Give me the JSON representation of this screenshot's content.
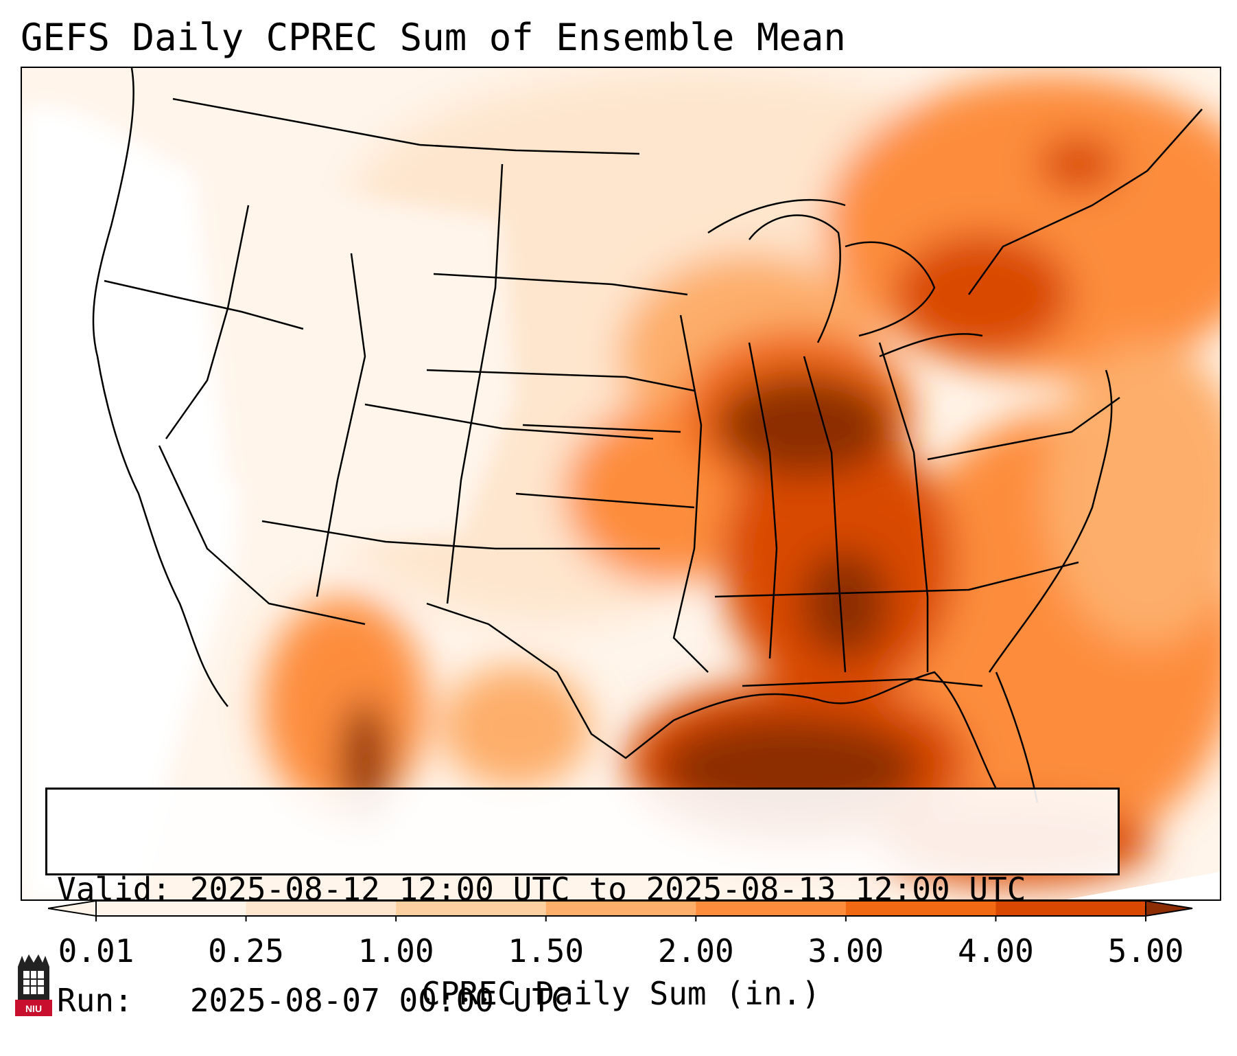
{
  "title": "GEFS Daily CPREC Sum of Ensemble Mean",
  "info": {
    "valid_line": "Valid: 2025-08-12 12:00 UTC to 2025-08-13 12:00 UTC",
    "run_line": "Run:   2025-08-07 00:00 UTC"
  },
  "colorbar": {
    "ticks": [
      "0.01",
      "0.25",
      "1.00",
      "1.50",
      "2.00",
      "3.00",
      "4.00",
      "5.00"
    ],
    "label": "CPREC Daily Sum (in.)",
    "colors": [
      "#fff5eb",
      "#fee6ce",
      "#fdd0a2",
      "#fdae6b",
      "#fd8d3c",
      "#f16913",
      "#d94801",
      "#8c2d04"
    ]
  },
  "logo": {
    "text": "NIU",
    "color": "#c8102e"
  },
  "map": {
    "projection": "lambert-conformal",
    "region": "Contiguous United States",
    "field": "ensemble mean convective precipitation",
    "heavy_areas": [
      "Illinois",
      "Indiana",
      "Ohio",
      "Kentucky",
      "Tennessee",
      "Alabama",
      "Gulf of Mexico",
      "Northeast Atlantic"
    ]
  }
}
